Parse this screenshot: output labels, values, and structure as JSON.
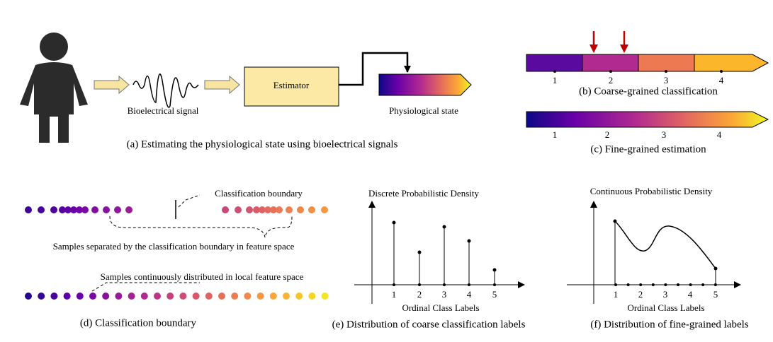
{
  "panel_a": {
    "signal_label": "Bioelectrical signal",
    "estimator": "Estimator",
    "state_label": "Physiological state",
    "caption": "(a) Estimating the physiological state using bioelectrical signals"
  },
  "panel_b": {
    "ticks": [
      "1",
      "2",
      "3",
      "4"
    ],
    "caption": "(b) Coarse-grained classification"
  },
  "panel_c": {
    "ticks": [
      "1",
      "2",
      "3",
      "4"
    ],
    "caption": "(c) Fine-grained estimation"
  },
  "panel_d": {
    "boundary_label": "Classification boundary",
    "separated_label": "Samples separated by the classification boundary in feature space",
    "continuous_label": "Samples continuously distributed in local feature space",
    "caption": "(d) Classification boundary"
  },
  "panel_e": {
    "y_title": "Discrete Probabilistic Density",
    "ticks": [
      "1",
      "2",
      "3",
      "4",
      "5"
    ],
    "x_title": "Ordinal Class Labels",
    "caption": "(e) Distribution of coarse classification labels"
  },
  "panel_f": {
    "y_title": "Continuous Probabilistic Density",
    "ticks": [
      "1",
      "2",
      "3",
      "4",
      "5"
    ],
    "x_title": "Ordinal Class Labels",
    "caption": "(f) Distribution of fine-grained labels"
  }
}
